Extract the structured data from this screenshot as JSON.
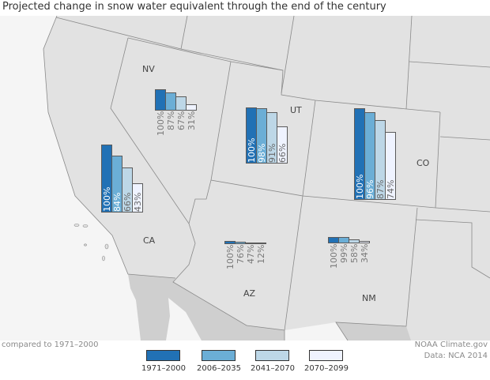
{
  "title": "Projected change in snow water equivalent through the end of the century",
  "colors": {
    "period_1": "#2171b5",
    "period_2": "#6baed6",
    "period_3": "#bdd7e7",
    "period_4": "#eff3ff",
    "land": "#e2e2e2",
    "ocean": "#f5f5f5",
    "mexico": "#cfcfcf"
  },
  "states": [
    {
      "code": "CA",
      "label": "CA",
      "values": [
        "100%",
        "84%",
        "66%",
        "43%"
      ],
      "pct": [
        100,
        84,
        66,
        43
      ]
    },
    {
      "code": "NV",
      "label": "NV",
      "values": [
        "100%",
        "87%",
        "67%",
        "31%"
      ],
      "pct": [
        100,
        87,
        67,
        31
      ]
    },
    {
      "code": "UT",
      "label": "UT",
      "values": [
        "100%",
        "98%",
        "91%",
        "66%"
      ],
      "pct": [
        100,
        98,
        91,
        66
      ]
    },
    {
      "code": "CO",
      "label": "CO",
      "values": [
        "100%",
        "96%",
        "87%",
        "74%"
      ],
      "pct": [
        100,
        96,
        87,
        74
      ]
    },
    {
      "code": "AZ",
      "label": "AZ",
      "values": [
        "100%",
        "76%",
        "47%",
        "12%"
      ],
      "pct": [
        100,
        76,
        47,
        12
      ]
    },
    {
      "code": "NM",
      "label": "NM",
      "values": [
        "100%",
        "99%",
        "58%",
        "34%"
      ],
      "pct": [
        100,
        99,
        58,
        34
      ]
    }
  ],
  "legend": {
    "items": [
      "1971–2000",
      "2006–2035",
      "2041–2070",
      "2070–2099"
    ]
  },
  "footer": {
    "note": "compared to 1971–2000",
    "credit": "NOAA Climate.gov",
    "source": "Data: NCA 2014"
  }
}
